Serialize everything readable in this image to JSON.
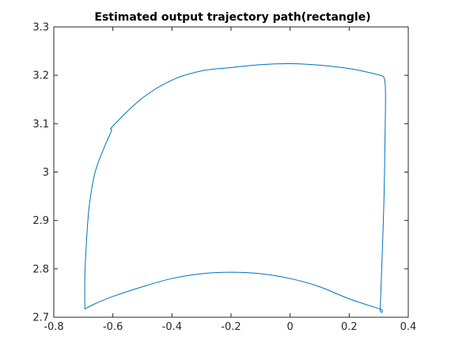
{
  "chart_data": {
    "type": "line",
    "title": "Estimated output trajectory path(rectangle)",
    "xlabel": "",
    "ylabel": "",
    "xlim": [
      -0.8,
      0.4
    ],
    "ylim": [
      2.7,
      3.3
    ],
    "xticks": [
      -0.8,
      -0.6,
      -0.4,
      -0.2,
      0,
      0.2,
      0.4
    ],
    "yticks": [
      2.7,
      2.8,
      2.9,
      3.0,
      3.1,
      3.2,
      3.3
    ],
    "xtick_labels": [
      "-0.8",
      "-0.6",
      "-0.4",
      "-0.2",
      "0",
      "0.2",
      "0.4"
    ],
    "ytick_labels": [
      "2.7",
      "2.8",
      "2.9",
      "3",
      "3.1",
      "3.2",
      "3.3"
    ],
    "grid": false,
    "series": [
      {
        "color": "#0072bd",
        "x": [
          -0.695,
          -0.66,
          -0.6,
          -0.5,
          -0.4,
          -0.3,
          -0.2,
          -0.1,
          0.0,
          0.1,
          0.2,
          0.305,
          0.305,
          0.31,
          0.318,
          0.322,
          0.323,
          0.322,
          0.318,
          0.305,
          0.25,
          0.2,
          0.1,
          0.0,
          -0.1,
          -0.2,
          -0.3,
          -0.4,
          -0.5,
          -0.6,
          -0.605,
          -0.63,
          -0.66,
          -0.68,
          -0.69,
          -0.695,
          -0.695
        ],
        "y": [
          2.717,
          2.728,
          2.743,
          2.763,
          2.78,
          2.79,
          2.793,
          2.79,
          2.78,
          2.763,
          2.738,
          2.717,
          2.717,
          2.8,
          2.95,
          3.1,
          3.15,
          3.18,
          3.195,
          3.2,
          3.208,
          3.214,
          3.221,
          3.224,
          3.222,
          3.216,
          3.209,
          3.19,
          3.153,
          3.095,
          3.085,
          3.05,
          3.0,
          2.93,
          2.85,
          2.78,
          2.717
        ]
      }
    ]
  }
}
